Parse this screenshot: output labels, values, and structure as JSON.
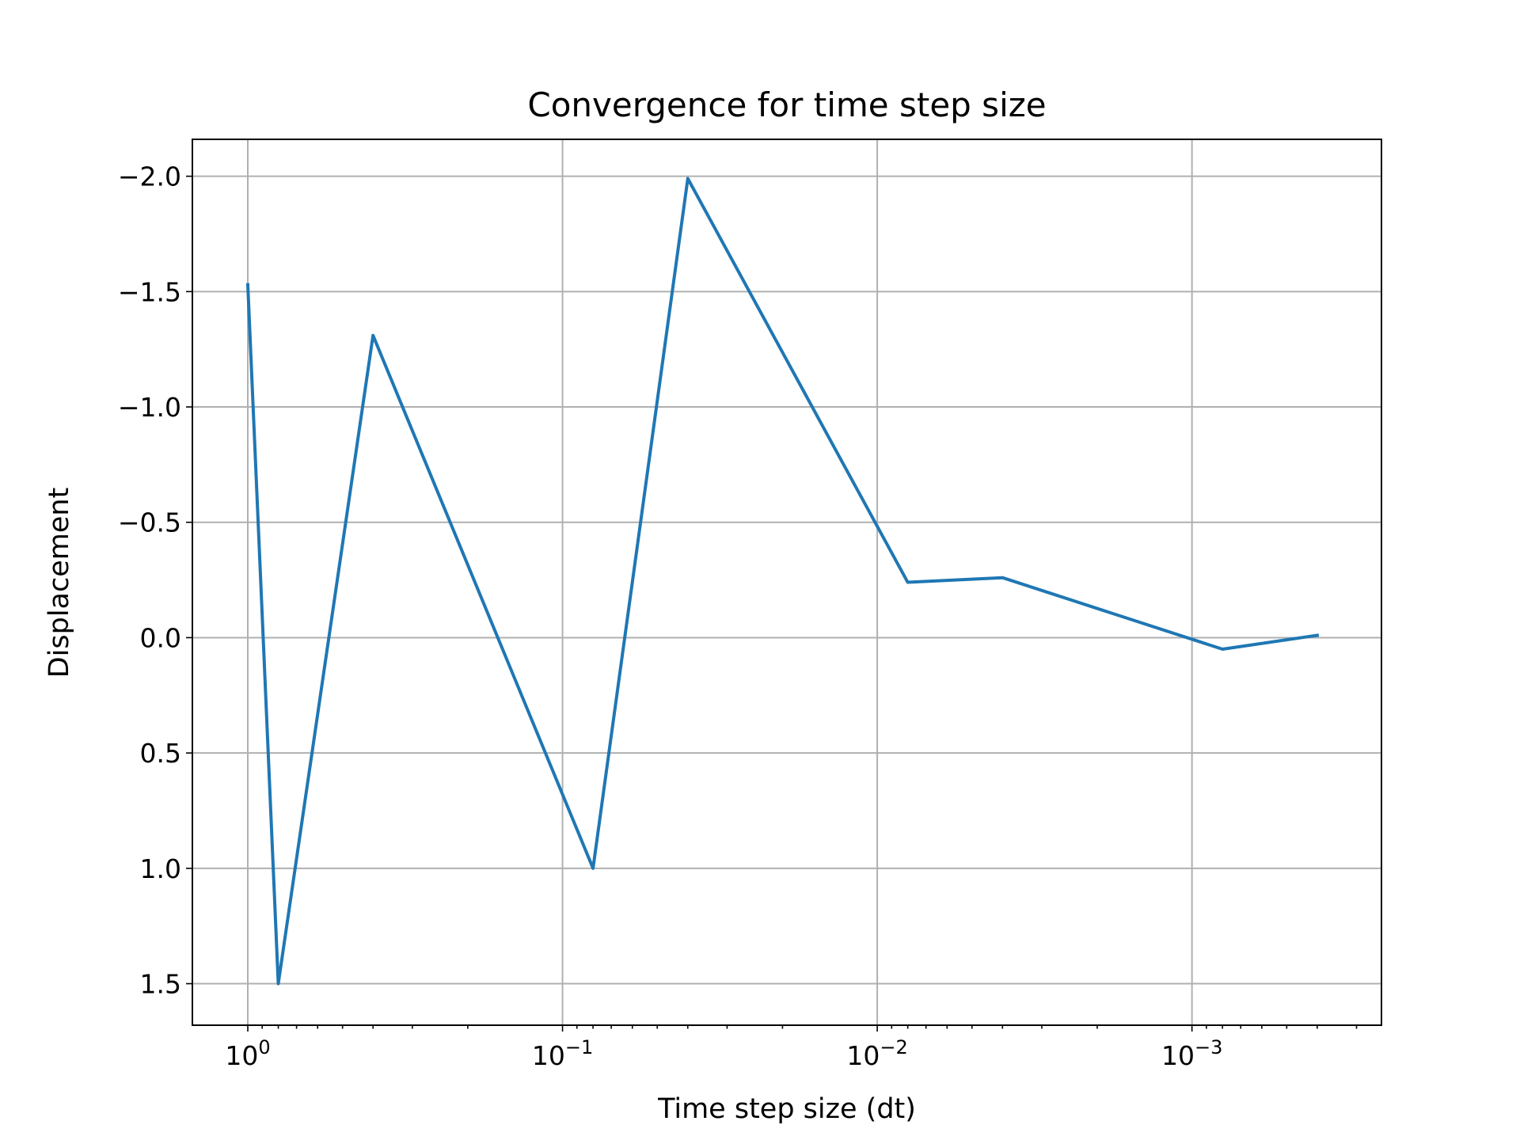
{
  "chart_data": {
    "type": "line",
    "title": "Convergence for time step size",
    "xlabel": "Time step size (dt)",
    "ylabel": "Displacement",
    "x_scale": "log",
    "x_inverted": true,
    "y_inverted": true,
    "grid": true,
    "xlim": [
      1.5,
      0.00025
    ],
    "ylim": [
      1.68,
      -2.16
    ],
    "x_ticks": [
      {
        "value": 1,
        "base": "10",
        "exp": "0"
      },
      {
        "value": 0.1,
        "base": "10",
        "exp": "−1"
      },
      {
        "value": 0.01,
        "base": "10",
        "exp": "−2"
      },
      {
        "value": 0.001,
        "base": "10",
        "exp": "−3"
      }
    ],
    "y_ticks": [
      {
        "value": -2.0,
        "label": "−2.0"
      },
      {
        "value": -1.5,
        "label": "−1.5"
      },
      {
        "value": -1.0,
        "label": "−1.0"
      },
      {
        "value": -0.5,
        "label": "−0.5"
      },
      {
        "value": 0.0,
        "label": "0.0"
      },
      {
        "value": 0.5,
        "label": "0.5"
      },
      {
        "value": 1.0,
        "label": "1.0"
      },
      {
        "value": 1.5,
        "label": "1.5"
      }
    ],
    "series": [
      {
        "color": "#1f77b4",
        "x": [
          1.0,
          0.8,
          0.4,
          0.08,
          0.04,
          0.008,
          0.004,
          0.0008,
          0.0004
        ],
        "y": [
          -1.53,
          1.5,
          -1.31,
          1.0,
          -1.99,
          -0.24,
          -0.26,
          0.05,
          -0.01
        ]
      }
    ]
  }
}
